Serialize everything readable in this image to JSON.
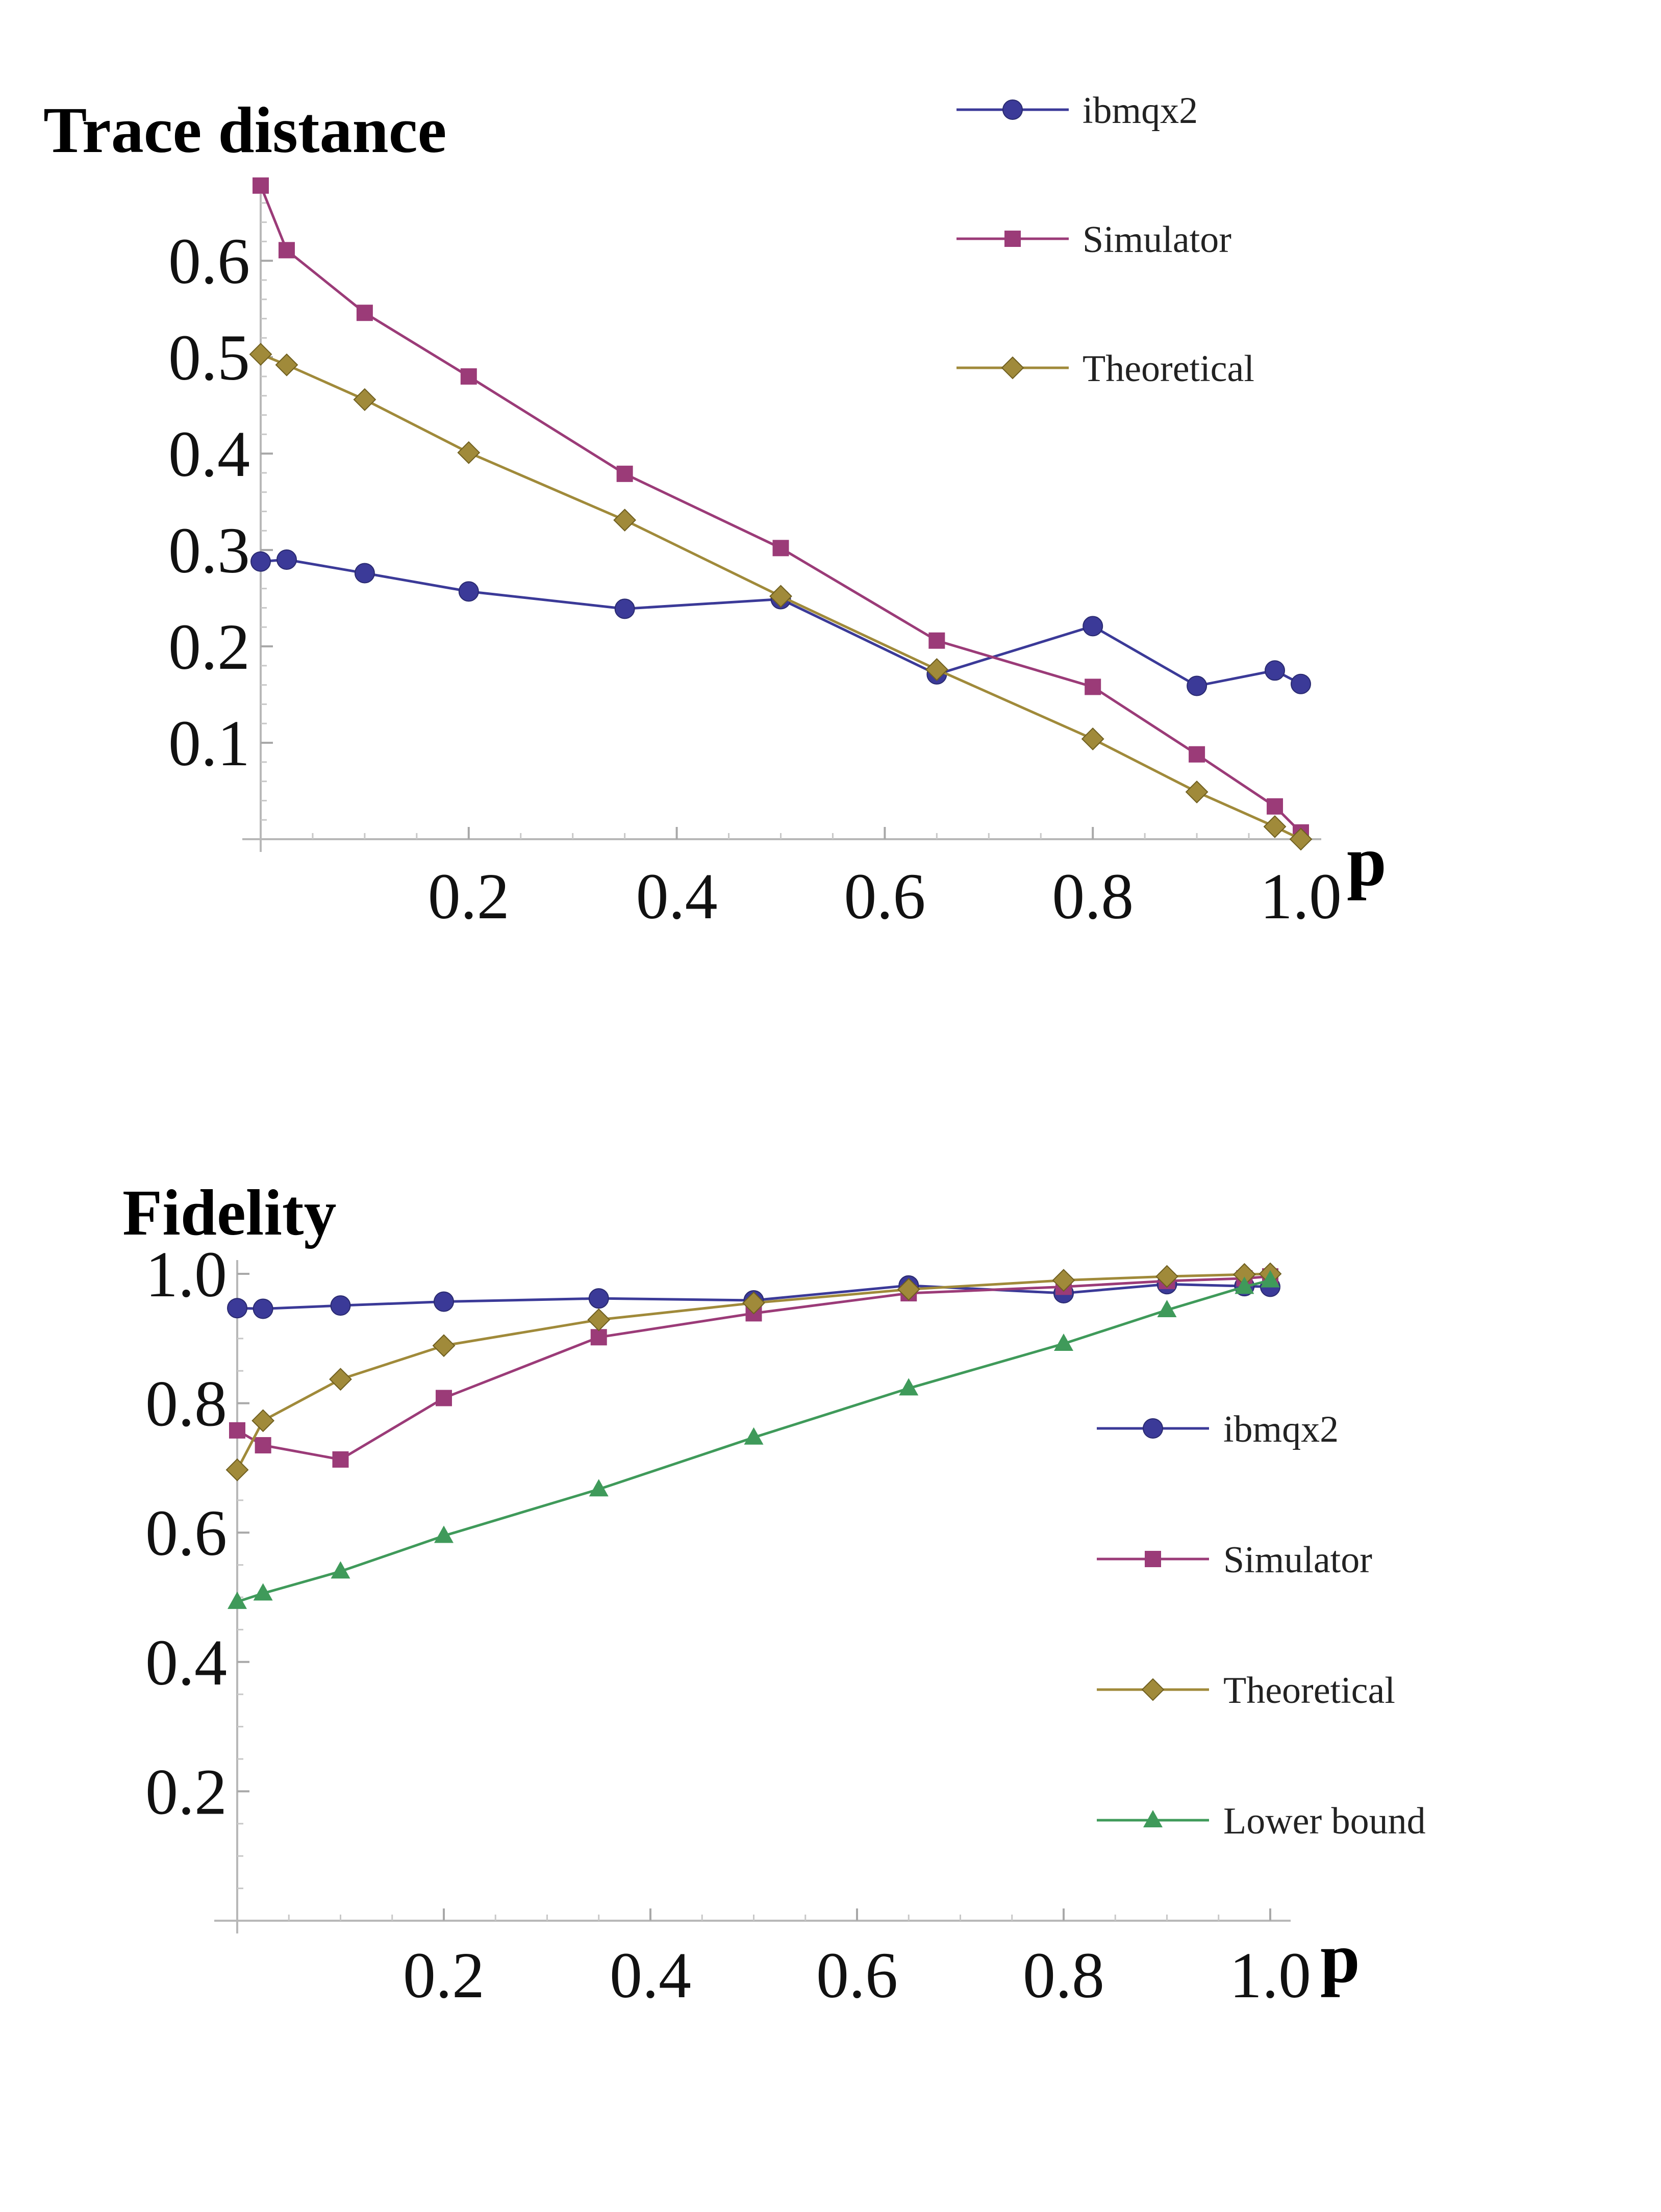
{
  "colors": {
    "ibmqx2": "#3b3a98",
    "Simulator": "#9b3b78",
    "Theoretical": "#a08a3a",
    "Lower bound": "#3f9a5a"
  },
  "chart_data": [
    {
      "type": "line",
      "title": "Trace distance",
      "xlabel": "p",
      "ylabel": "",
      "xlim": [
        0,
        1.0
      ],
      "ylim": [
        0,
        0.68
      ],
      "x_ticks": [
        "0.2",
        "0.4",
        "0.6",
        "0.8",
        "1.0"
      ],
      "y_ticks": [
        "0.1",
        "0.2",
        "0.3",
        "0.4",
        "0.5",
        "0.6"
      ],
      "legend_position": "top-right",
      "series": [
        {
          "name": "ibmqx2",
          "marker": "circle",
          "x": [
            0,
            0.025,
            0.1,
            0.2,
            0.35,
            0.5,
            0.65,
            0.8,
            0.9,
            0.975,
            1.0
          ],
          "values": [
            0.288,
            0.29,
            0.276,
            0.257,
            0.239,
            0.249,
            0.171,
            0.221,
            0.159,
            0.175,
            0.161
          ]
        },
        {
          "name": "Simulator",
          "marker": "square",
          "x": [
            0,
            0.025,
            0.1,
            0.2,
            0.35,
            0.5,
            0.65,
            0.8,
            0.9,
            0.975,
            1.0
          ],
          "values": [
            0.678,
            0.611,
            0.546,
            0.48,
            0.379,
            0.302,
            0.206,
            0.158,
            0.088,
            0.034,
            0.007
          ]
        },
        {
          "name": "Theoretical",
          "marker": "diamond",
          "x": [
            0,
            0.025,
            0.1,
            0.2,
            0.35,
            0.5,
            0.65,
            0.8,
            0.9,
            0.975,
            1.0
          ],
          "values": [
            0.503,
            0.492,
            0.456,
            0.401,
            0.331,
            0.252,
            0.176,
            0.104,
            0.049,
            0.013,
            0.0
          ]
        }
      ]
    },
    {
      "type": "line",
      "title": "Fidelity",
      "xlabel": "p",
      "ylabel": "",
      "xlim": [
        0,
        1.0
      ],
      "ylim": [
        0,
        1.0
      ],
      "x_ticks": [
        "0.2",
        "0.4",
        "0.6",
        "0.8",
        "1.0"
      ],
      "y_ticks": [
        "0.2",
        "0.4",
        "0.6",
        "0.8",
        "1.0"
      ],
      "legend_position": "right",
      "series": [
        {
          "name": "ibmqx2",
          "marker": "circle",
          "x": [
            0,
            0.025,
            0.1,
            0.2,
            0.35,
            0.5,
            0.65,
            0.8,
            0.9,
            0.975,
            1.0
          ],
          "values": [
            0.947,
            0.946,
            0.951,
            0.957,
            0.962,
            0.959,
            0.982,
            0.97,
            0.984,
            0.981,
            0.98
          ]
        },
        {
          "name": "Simulator",
          "marker": "square",
          "x": [
            0,
            0.025,
            0.1,
            0.2,
            0.35,
            0.5,
            0.65,
            0.8,
            0.9,
            0.975,
            1.0
          ],
          "values": [
            0.758,
            0.735,
            0.713,
            0.808,
            0.902,
            0.939,
            0.97,
            0.98,
            0.989,
            0.993,
            0.996
          ]
        },
        {
          "name": "Theoretical",
          "marker": "diamond",
          "x": [
            0,
            0.025,
            0.1,
            0.2,
            0.35,
            0.5,
            0.65,
            0.8,
            0.9,
            0.975,
            1.0
          ],
          "values": [
            0.697,
            0.773,
            0.837,
            0.889,
            0.929,
            0.955,
            0.976,
            0.99,
            0.996,
            0.999,
            1.0
          ]
        },
        {
          "name": "Lower bound",
          "marker": "triangle",
          "x": [
            0,
            0.025,
            0.1,
            0.2,
            0.35,
            0.5,
            0.65,
            0.8,
            0.9,
            0.975,
            1.0
          ],
          "values": [
            0.493,
            0.506,
            0.54,
            0.595,
            0.667,
            0.747,
            0.823,
            0.892,
            0.944,
            0.98,
            0.99
          ]
        }
      ]
    }
  ]
}
